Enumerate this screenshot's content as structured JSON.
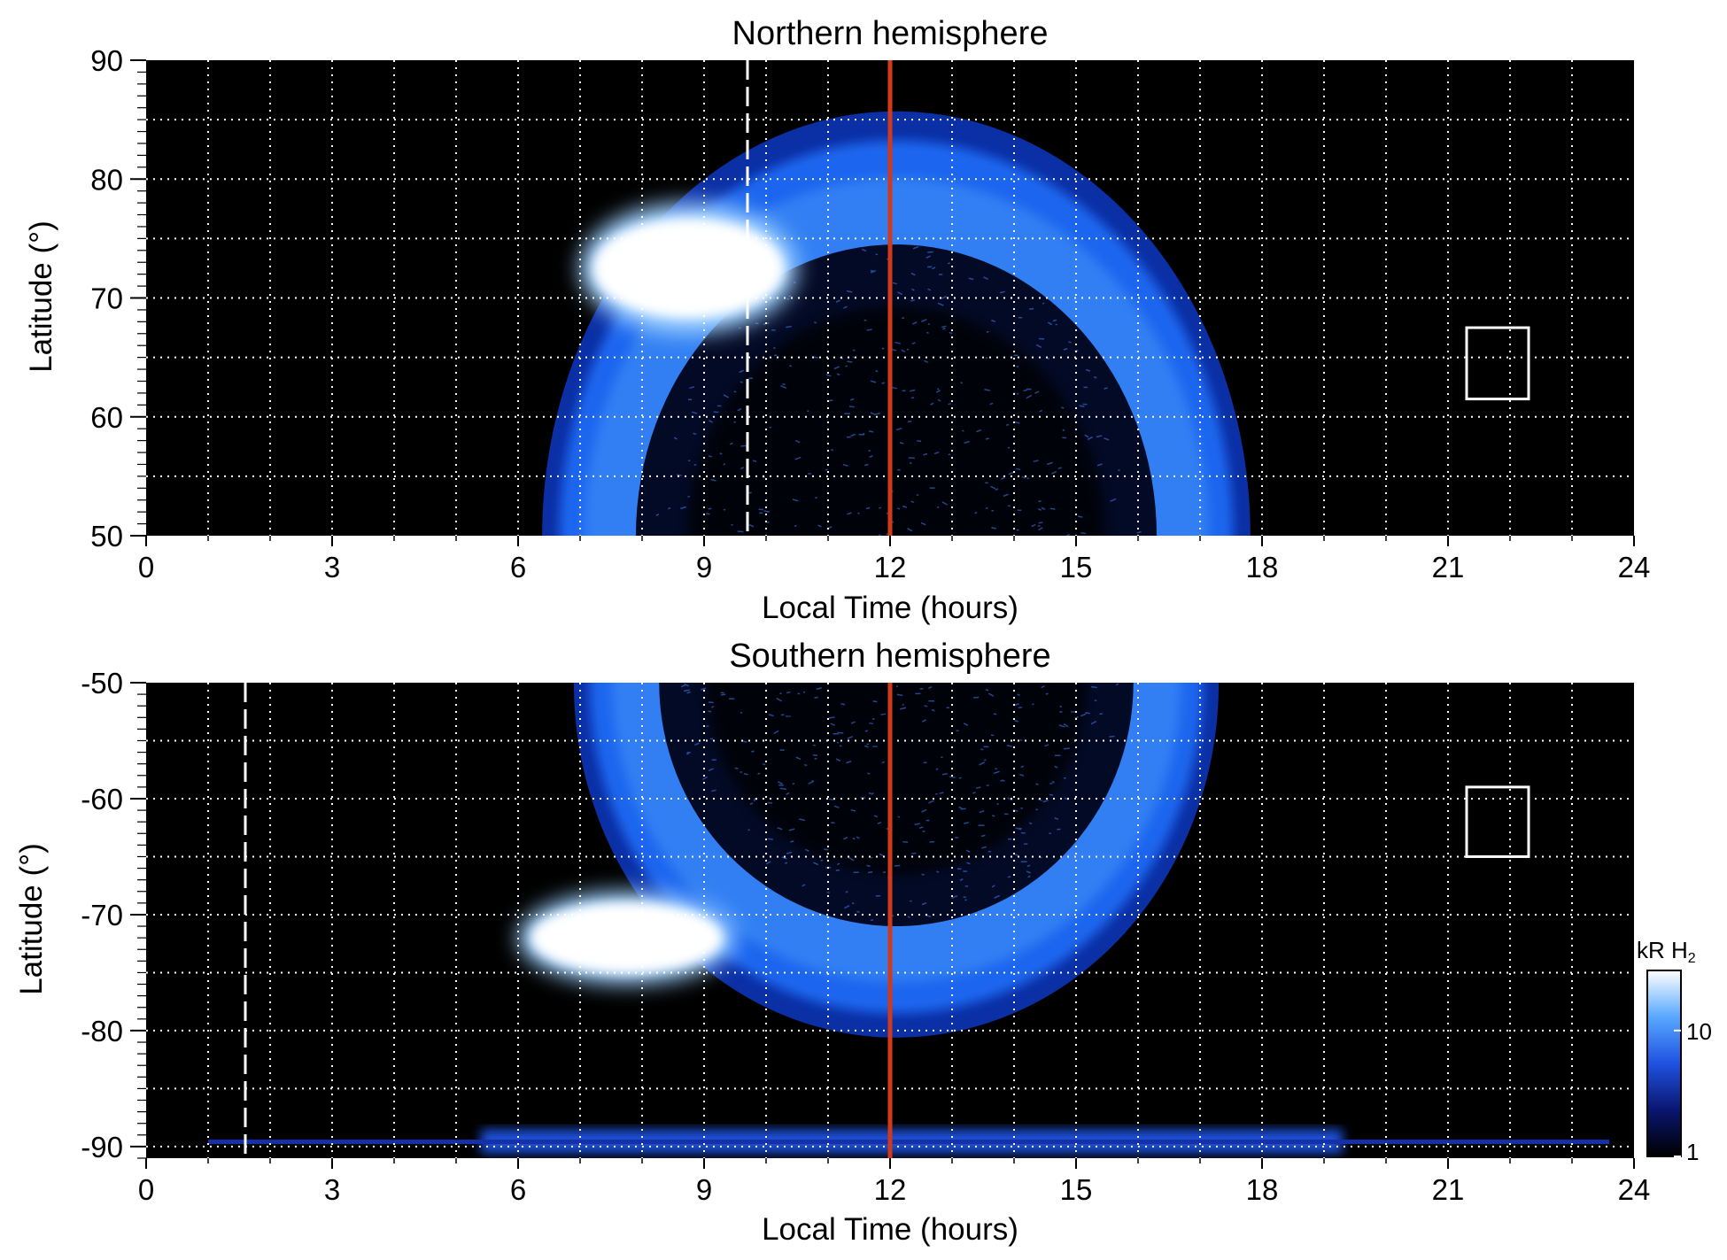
{
  "chart_data": [
    {
      "type": "heatmap",
      "title": "Northern hemisphere",
      "xlabel": "Local Time (hours)",
      "ylabel": "Latitude (°)",
      "xlim": [
        0,
        24
      ],
      "ylim": [
        50,
        90
      ],
      "x_ticks": [
        "0",
        "3",
        "6",
        "9",
        "12",
        "15",
        "18",
        "21",
        "24"
      ],
      "y_ticks": [
        "50",
        "60",
        "70",
        "80",
        "90"
      ],
      "grid": true,
      "reference_line_local_time": 12,
      "dashed_line_local_time": 9.7,
      "box": {
        "lt_range": [
          21.3,
          22.3
        ],
        "lat_range": [
          61.5,
          67.5
        ]
      },
      "main_oval": {
        "center_lt": 12.1,
        "center_lat": 50,
        "half_width_lt": 5.6,
        "height_lat": 35
      },
      "bright_region": {
        "lt_range": [
          7,
          10.5
        ],
        "lat_range": [
          67,
          78
        ],
        "level": "saturated"
      },
      "emission_range_kR": [
        1,
        30
      ]
    },
    {
      "type": "heatmap",
      "title": "Southern hemisphere",
      "xlabel": "Local Time (hours)",
      "ylabel": "Latitude (°)",
      "xlim": [
        0,
        24
      ],
      "ylim": [
        -91,
        -50
      ],
      "x_ticks": [
        "0",
        "3",
        "6",
        "9",
        "12",
        "15",
        "18",
        "21",
        "24"
      ],
      "y_ticks": [
        "-50",
        "-60",
        "-70",
        "-80",
        "-90"
      ],
      "grid": true,
      "reference_line_local_time": 12,
      "dashed_line_local_time": 1.6,
      "box": {
        "lt_range": [
          21.3,
          22.3
        ],
        "lat_range": [
          -65,
          -59
        ]
      },
      "main_oval": {
        "center_lt": 12.1,
        "center_lat": -50,
        "half_width_lt": 5.1,
        "height_lat": 30
      },
      "bright_region": {
        "lt_range": [
          6,
          9.5
        ],
        "lat_range": [
          -76,
          -68
        ],
        "level": "saturated"
      },
      "emission_range_kR": [
        1,
        30
      ]
    }
  ],
  "colorbar": {
    "label": "kR H",
    "label_subscript": "2",
    "ticks": [
      "1",
      "10"
    ],
    "scale": "log",
    "colors": [
      "#000000",
      "#0a1670",
      "#1f52e0",
      "#58a8ff",
      "#ffffff"
    ]
  },
  "colors": {
    "background": "#000000",
    "oval_dim": "#0b2fa5",
    "oval_mid": "#1f66ef",
    "oval_bright": "#5aaefc",
    "saturated": "#ffffff",
    "reference_line": "#d03a1a",
    "grid": "#ffffff"
  }
}
